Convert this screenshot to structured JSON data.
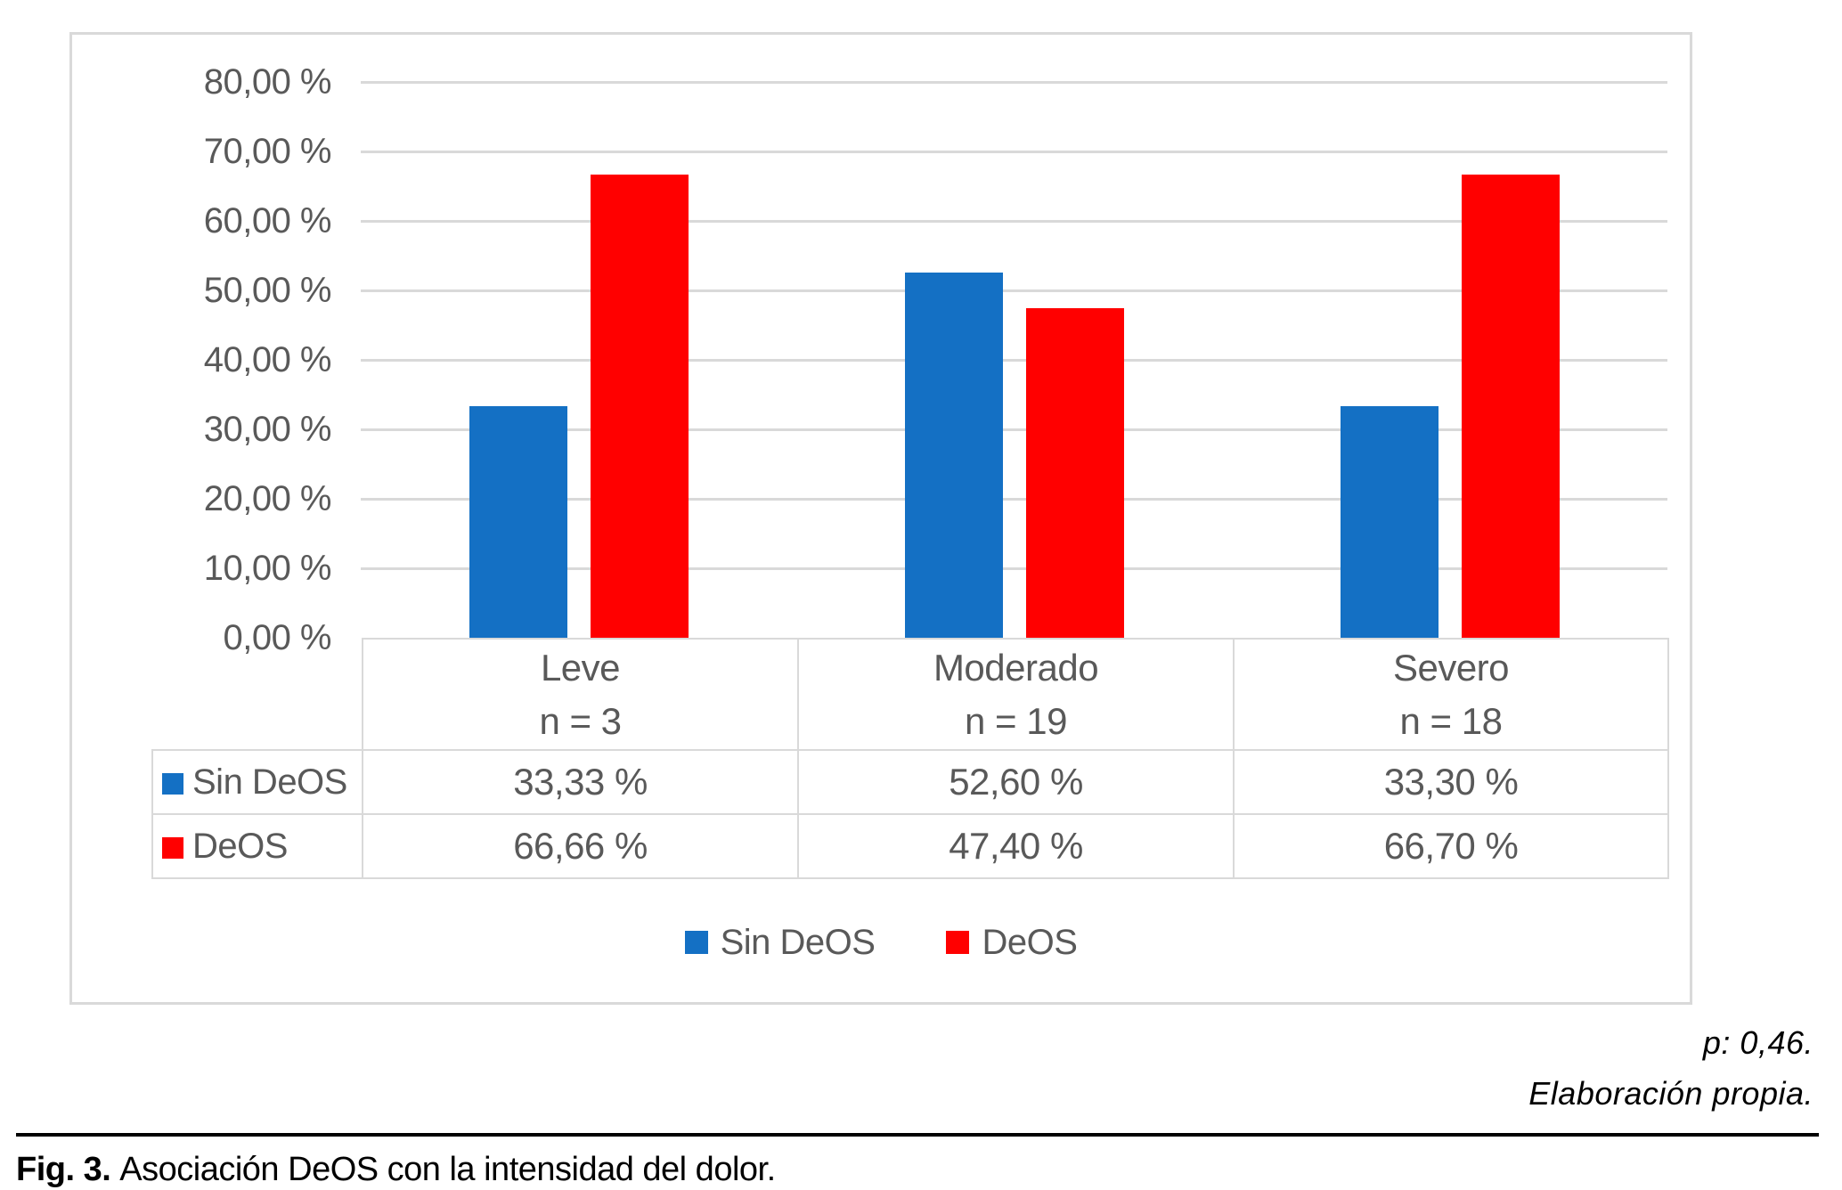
{
  "chart_data": {
    "type": "bar",
    "title": "",
    "categories": [
      "Leve",
      "Moderado",
      "Severo"
    ],
    "category_counts": [
      "n = 3",
      "n = 19",
      "n = 18"
    ],
    "series": [
      {
        "name": "Sin DeOS",
        "color": "#1470c4",
        "values": [
          33.33,
          52.6,
          33.3
        ],
        "display_values": [
          "33,33 %",
          "52,60 %",
          "33,30 %"
        ]
      },
      {
        "name": "DeOS",
        "color": "#ff0000",
        "values": [
          66.66,
          47.4,
          66.7
        ],
        "display_values": [
          "66,66 %",
          "47,40 %",
          "66,70 %"
        ]
      }
    ],
    "y_axis": {
      "min": 0,
      "max": 80,
      "step": 10,
      "tick_labels": [
        "0,00 %",
        "10,00 %",
        "20,00 %",
        "30,00 %",
        "40,00 %",
        "50,00 %",
        "60,00 %",
        "70,00 %",
        "80,00 %"
      ]
    },
    "grid": true,
    "legend_position": "bottom",
    "has_data_table": true
  },
  "annotations": {
    "p_value": "p: 0,46.",
    "source": "Elaboración propia."
  },
  "caption": {
    "label": "Fig. 3.",
    "text": "Asociación DeOS con la intensidad del dolor."
  },
  "colors": {
    "series_sin_deos": "#1470c4",
    "series_deos": "#ff0000",
    "gridline": "#d9d9d9",
    "chart_border": "#d9d9d9",
    "chart_text": "#595959",
    "caption_text": "#000000"
  }
}
